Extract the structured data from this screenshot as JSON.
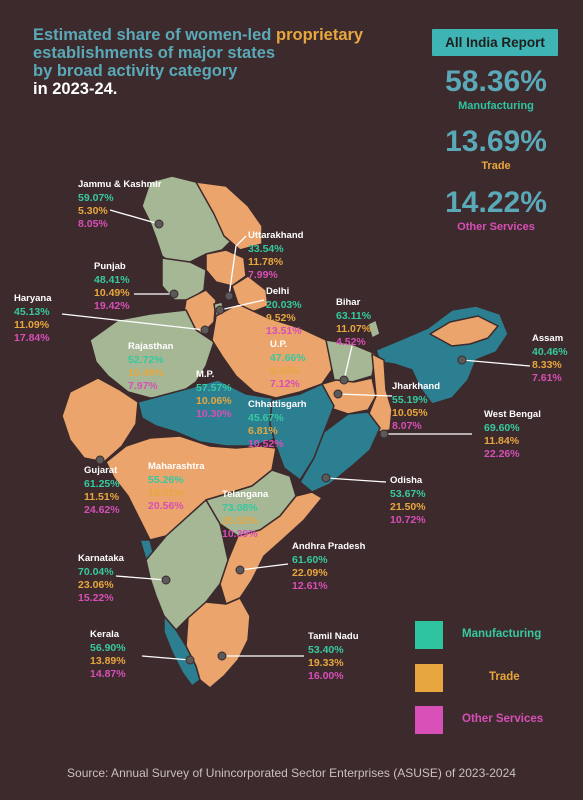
{
  "title": {
    "line1a": "Estimated share of women-led",
    "line1b": "proprietary",
    "line2": "establishments of major states",
    "line3": "by broad activity category",
    "line4": "in 2023-24."
  },
  "report_button": "All India Report",
  "all_india": [
    {
      "value": "58.36%",
      "label": "Manufacturing",
      "color": "#2fc4a0"
    },
    {
      "value": "13.69%",
      "label": "Trade",
      "color": "#e8a73e"
    },
    {
      "value": "14.22%",
      "label": "Other Services",
      "color": "#d74fb7"
    }
  ],
  "states": [
    {
      "key": "jk",
      "name": "Jammu & Kashmir",
      "m": "59.07%",
      "t": "5.30%",
      "o": "8.05%"
    },
    {
      "key": "uk",
      "name": "Uttarakhand",
      "m": "33.54%",
      "t": "11.78%",
      "o": "7.99%"
    },
    {
      "key": "pb",
      "name": "Punjab",
      "m": "48.41%",
      "t": "10.49%",
      "o": "19.42%"
    },
    {
      "key": "hr",
      "name": "Haryana",
      "m": "45.13%",
      "t": "11.09%",
      "o": "17.84%"
    },
    {
      "key": "dl",
      "name": "Delhi",
      "m": "20.03%",
      "t": "9.52%",
      "o": "13.51%"
    },
    {
      "key": "br",
      "name": "Bihar",
      "m": "63.11%",
      "t": "11.07%",
      "o": "4.52%"
    },
    {
      "key": "rj",
      "name": "Rajasthan",
      "m": "52.72%",
      "t": "10.49%",
      "o": "7.97%"
    },
    {
      "key": "up",
      "name": "U.P.",
      "m": "47.66%",
      "t": "9.35%",
      "o": "7.12%"
    },
    {
      "key": "as",
      "name": "Assam",
      "m": "40.46%",
      "t": "8.33%",
      "o": "7.61%"
    },
    {
      "key": "jh",
      "name": "Jharkhand",
      "m": "55.19%",
      "t": "10.05%",
      "o": "8.07%"
    },
    {
      "key": "mp",
      "name": "M.P.",
      "m": "57.57%",
      "t": "10.06%",
      "o": "10.30%"
    },
    {
      "key": "cg",
      "name": "Chhattisgarh",
      "m": "45.67%",
      "t": "6.81%",
      "o": "10.52%"
    },
    {
      "key": "wb",
      "name": "West Bengal",
      "m": "69.60%",
      "t": "11.84%",
      "o": "22.26%"
    },
    {
      "key": "gj",
      "name": "Gujarat",
      "m": "61.25%",
      "t": "11.51%",
      "o": "24.62%"
    },
    {
      "key": "mh",
      "name": "Maharashtra",
      "m": "55.26%",
      "t": "18.51%",
      "o": "20.56%"
    },
    {
      "key": "tg",
      "name": "Telangana",
      "m": "73.08%",
      "t": "20.52%",
      "o": "10.39%"
    },
    {
      "key": "od",
      "name": "Odisha",
      "m": "53.67%",
      "t": "21.50%",
      "o": "10.72%"
    },
    {
      "key": "ap",
      "name": "Andhra Pradesh",
      "m": "61.60%",
      "t": "22.09%",
      "o": "12.61%"
    },
    {
      "key": "ka",
      "name": "Karnataka",
      "m": "70.04%",
      "t": "23.06%",
      "o": "15.22%"
    },
    {
      "key": "kl",
      "name": "Kerala",
      "m": "56.90%",
      "t": "13.89%",
      "o": "14.87%"
    },
    {
      "key": "tn",
      "name": "Tamil Nadu",
      "m": "53.40%",
      "t": "19.33%",
      "o": "16.00%"
    }
  ],
  "legend": [
    {
      "label": "Manufacturing",
      "color": "#2fc4a0",
      "text_color": "#36c9a0"
    },
    {
      "label": "Trade",
      "color": "#e8a73e",
      "text_color": "#e8a73e"
    },
    {
      "label": "Other Services",
      "color": "#d74fb7",
      "text_color": "#d74fb7"
    }
  ],
  "map_colors": {
    "green": "#a6b795",
    "orange": "#eaa46c",
    "teal": "#2c7f91",
    "border": "#3d2a2c"
  },
  "source": "Source: Annual Survey of Unincorporated Sector Enterprises (ASUSE) of 2023-2024"
}
